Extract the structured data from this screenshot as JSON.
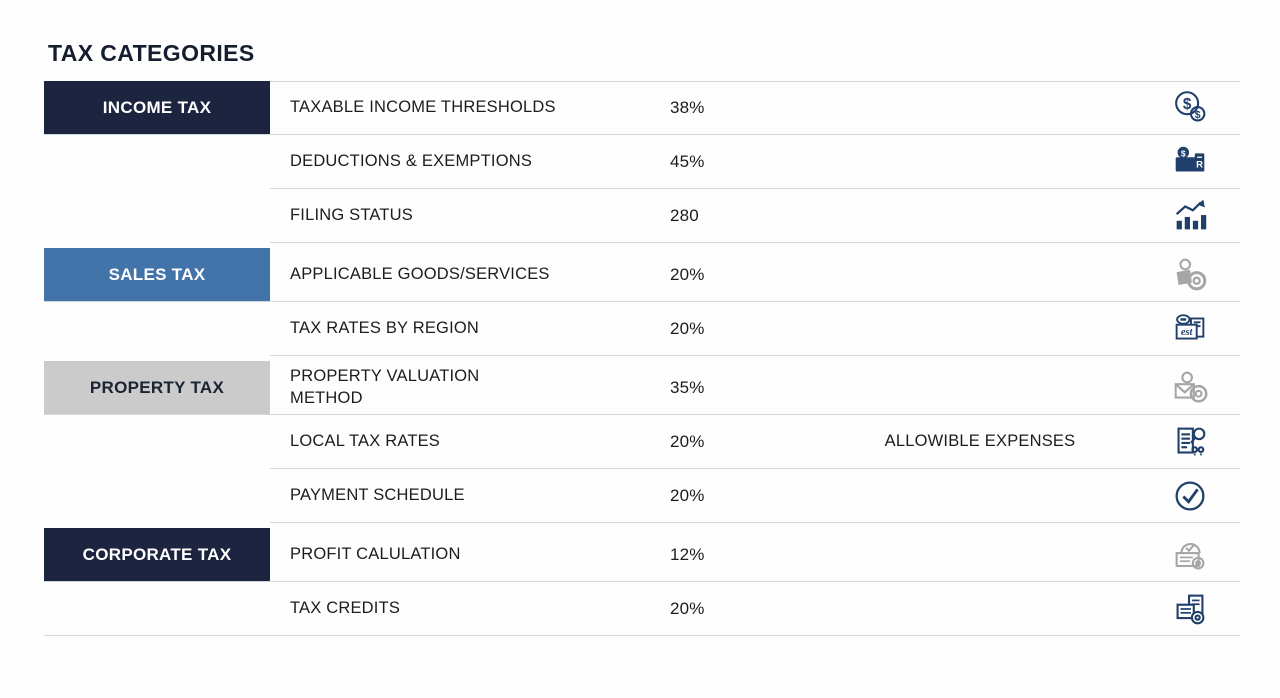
{
  "title": "TAX CATEGORIES",
  "colors": {
    "category_navy": "#1c2440",
    "category_blue": "#4273a9",
    "category_gray": "#cbcbcb",
    "divider": "#ccd7e0",
    "icon_navy": "#20406b",
    "icon_gray": "#a6a6a6",
    "title_text": "#161d2e",
    "body_text": "#1c1c1c"
  },
  "table": {
    "rows": [
      {
        "category": {
          "label": "INCOME TAX",
          "color": "navy"
        },
        "label": "TAXABLE INCOME THRESHOLDS",
        "value": "38%",
        "extra": "",
        "icon": "dollar-coins-icon",
        "tone": "navy",
        "group_start": false
      },
      {
        "category": null,
        "label": "DEDUCTIONS & EXEMPTIONS",
        "value": "45%",
        "extra": "",
        "icon": "wallet-dollar-icon",
        "tone": "navy",
        "group_start": false
      },
      {
        "category": null,
        "label": "FILING STATUS",
        "value": "280",
        "extra": "",
        "icon": "growth-chart-icon",
        "tone": "navy",
        "group_start": false
      },
      {
        "category": {
          "label": "SALES TAX",
          "color": "blue"
        },
        "label": "APPLICABLE GOODS/SERVICES",
        "value": "20%",
        "extra": "",
        "icon": "shopping-coin-icon",
        "tone": "gray",
        "group_start": true
      },
      {
        "category": null,
        "label": "TAX RATES BY REGION",
        "value": "20%",
        "extra": "",
        "icon": "estimate-card-icon",
        "tone": "navy",
        "group_start": false
      },
      {
        "category": {
          "label": "PROPERTY TAX",
          "color": "gray"
        },
        "label": "PROPERTY VALUATION\nMETHOD",
        "value": "35%",
        "extra": "",
        "icon": "mail-contact-coin-icon",
        "tone": "gray",
        "group_start": true
      },
      {
        "category": null,
        "label": "LOCAL TAX RATES",
        "value": "20%",
        "extra": "ALLOWIBLE EXPENSES",
        "icon": "document-magnifier-icon",
        "tone": "navy",
        "group_start": false
      },
      {
        "category": null,
        "label": "PAYMENT SCHEDULE",
        "value": "20%",
        "extra": "",
        "icon": "check-circle-icon",
        "tone": "navy",
        "group_start": false
      },
      {
        "category": {
          "label": "CORPORATE TAX",
          "color": "navy"
        },
        "label": "PROFIT CALULATION",
        "value": "12%",
        "extra": "",
        "icon": "receipt-check-coin-icon",
        "tone": "gray",
        "group_start": true
      },
      {
        "category": null,
        "label": "TAX CREDITS",
        "value": "20%",
        "extra": "",
        "icon": "documents-coin-icon",
        "tone": "navy",
        "group_start": false
      }
    ]
  }
}
